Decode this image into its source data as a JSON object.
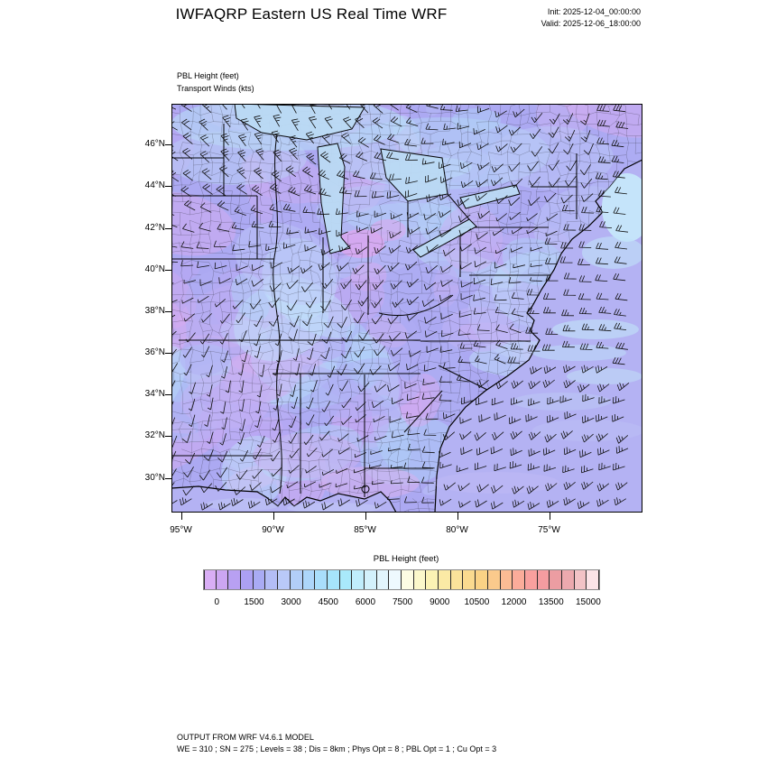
{
  "header": {
    "title": "IWFAQRP Eastern US Real Time WRF",
    "init_label": "Init: 2025-12-04_00:00:00",
    "valid_label": "Valid: 2025-12-06_18:00:00"
  },
  "map": {
    "field_label": "PBL Height   (feet)",
    "winds_label": "Transport Winds   (kts)",
    "lat_ticks": [
      "46°N",
      "44°N",
      "42°N",
      "40°N",
      "38°N",
      "36°N",
      "34°N",
      "32°N",
      "30°N"
    ],
    "lon_ticks": [
      "95°W",
      "90°W",
      "85°W",
      "80°W",
      "75°W"
    ]
  },
  "colorbar": {
    "title": "PBL Height  (feet)",
    "tick_labels": [
      "0",
      "1500",
      "3000",
      "4500",
      "6000",
      "7500",
      "9000",
      "10500",
      "12000",
      "13500",
      "15000"
    ],
    "cell_colors": [
      "#D9AEF5",
      "#CCA6F2",
      "#B8A0F2",
      "#ACA0F3",
      "#A9ABF4",
      "#B3BDF6",
      "#B9C9F8",
      "#B2CEF8",
      "#ADD6FA",
      "#A9DEFB",
      "#A6E4FB",
      "#A9E9FB",
      "#C0EDFC",
      "#D3F1FC",
      "#E2F5FD",
      "#EEF9FE",
      "#FDFCE3",
      "#FCF8CB",
      "#FBF2B4",
      "#FBEAA5",
      "#FAE29A",
      "#FADA8F",
      "#FAD285",
      "#FBCA8C",
      "#FCBC94",
      "#FBAC9A",
      "#F9A09E",
      "#F59CA0",
      "#EC9DA2",
      "#ECA9AE",
      "#F2C3C6",
      "#FBE4E7"
    ]
  },
  "footer": {
    "line1": "OUTPUT FROM WRF V4.6.1 MODEL",
    "line2": "WE = 310 ; SN = 275 ; Levels = 38 ; Dis = 8km ; Phys Opt = 8 ; PBL Opt = 1 ; Cu Opt = 3"
  },
  "chart_data": {
    "type": "heatmap",
    "title": "IWFAQRP Eastern US Real Time WRF",
    "subtitle": [
      "PBL Height (feet)",
      "Transport Winds (kts)"
    ],
    "init_time": "2025-12-04_00:00:00",
    "valid_time": "2025-12-06_18:00:00",
    "x_ticks": [
      "95°W",
      "90°W",
      "85°W",
      "80°W",
      "75°W"
    ],
    "y_ticks": [
      "46°N",
      "44°N",
      "42°N",
      "40°N",
      "38°N",
      "36°N",
      "34°N",
      "32°N",
      "30°N"
    ],
    "colorbar": {
      "label": "PBL Height (feet)",
      "ticks": [
        0,
        1500,
        3000,
        4500,
        6000,
        7500,
        9000,
        10500,
        12000,
        13500,
        15000
      ],
      "tick_interval": 1500,
      "cell_interval": 500,
      "n_cells": 32
    },
    "wind_overlay": "Transport wind barbs (kts) plotted at every model grid point; streaky SW-flow barbs over the Atlantic and Gulf of Mexico",
    "field_summary": "PBL heights mostly in the 0-3000 ft bins (purple/periwinkle) across the domain; 3000-6000 ft (light blue/cyan) over the Great Lakes, upper Midwest, Gulf of Maine and offshore Atlantic; lowest bins (pink/lavender) in scattered pockets near Lake Michigan, the Gulf coast and the west of the domain",
    "model_info": {
      "model": "WRF V4.6.1",
      "WE": 310,
      "SN": 275,
      "Levels": 38,
      "Dis": "8km",
      "Phys_Opt": 8,
      "PBL_Opt": 1,
      "Cu_Opt": 3
    }
  }
}
